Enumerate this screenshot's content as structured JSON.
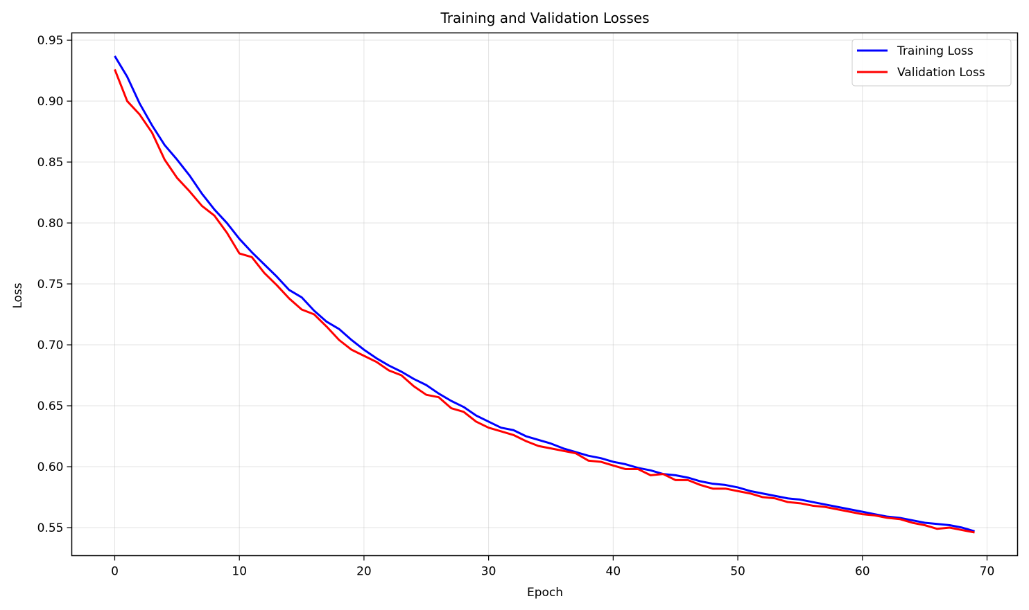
{
  "chart_data": {
    "type": "line",
    "title": "Training and Validation Losses",
    "xlabel": "Epoch",
    "ylabel": "Loss",
    "xlim": [
      -3.45,
      72.45
    ],
    "ylim": [
      0.527,
      0.956
    ],
    "xticks": [
      0,
      10,
      20,
      30,
      40,
      50,
      60,
      70
    ],
    "xtick_labels": [
      "0",
      "10",
      "20",
      "30",
      "40",
      "50",
      "60",
      "70"
    ],
    "yticks": [
      0.55,
      0.6,
      0.65,
      0.7,
      0.75,
      0.8,
      0.85,
      0.9,
      0.95
    ],
    "ytick_labels": [
      "0.55",
      "0.60",
      "0.65",
      "0.70",
      "0.75",
      "0.80",
      "0.85",
      "0.90",
      "0.95"
    ],
    "grid": true,
    "legend_position": "top-right",
    "x": [
      0,
      1,
      2,
      3,
      4,
      5,
      6,
      7,
      8,
      9,
      10,
      11,
      12,
      13,
      14,
      15,
      16,
      17,
      18,
      19,
      20,
      21,
      22,
      23,
      24,
      25,
      26,
      27,
      28,
      29,
      30,
      31,
      32,
      33,
      34,
      35,
      36,
      37,
      38,
      39,
      40,
      41,
      42,
      43,
      44,
      45,
      46,
      47,
      48,
      49,
      50,
      51,
      52,
      53,
      54,
      55,
      56,
      57,
      58,
      59,
      60,
      61,
      62,
      63,
      64,
      65,
      66,
      67,
      68,
      69
    ],
    "series": [
      {
        "name": "Training Loss",
        "color": "#0000ff",
        "values": [
          0.937,
          0.92,
          0.898,
          0.88,
          0.864,
          0.852,
          0.839,
          0.824,
          0.811,
          0.8,
          0.787,
          0.776,
          0.766,
          0.756,
          0.745,
          0.739,
          0.728,
          0.719,
          0.713,
          0.704,
          0.696,
          0.689,
          0.683,
          0.678,
          0.672,
          0.667,
          0.66,
          0.654,
          0.649,
          0.642,
          0.637,
          0.632,
          0.63,
          0.625,
          0.622,
          0.619,
          0.615,
          0.612,
          0.609,
          0.607,
          0.604,
          0.602,
          0.599,
          0.597,
          0.594,
          0.593,
          0.591,
          0.588,
          0.586,
          0.585,
          0.583,
          0.58,
          0.578,
          0.576,
          0.574,
          0.573,
          0.571,
          0.569,
          0.567,
          0.565,
          0.563,
          0.561,
          0.559,
          0.558,
          0.556,
          0.554,
          0.553,
          0.552,
          0.55,
          0.547
        ]
      },
      {
        "name": "Validation Loss",
        "color": "#ff0000",
        "values": [
          0.926,
          0.9,
          0.889,
          0.874,
          0.852,
          0.837,
          0.826,
          0.814,
          0.806,
          0.792,
          0.775,
          0.772,
          0.759,
          0.749,
          0.738,
          0.729,
          0.725,
          0.715,
          0.704,
          0.696,
          0.691,
          0.686,
          0.679,
          0.675,
          0.666,
          0.659,
          0.657,
          0.648,
          0.645,
          0.637,
          0.632,
          0.629,
          0.626,
          0.621,
          0.617,
          0.615,
          0.613,
          0.611,
          0.605,
          0.604,
          0.601,
          0.598,
          0.598,
          0.593,
          0.594,
          0.589,
          0.589,
          0.585,
          0.582,
          0.582,
          0.58,
          0.578,
          0.575,
          0.574,
          0.571,
          0.57,
          0.568,
          0.567,
          0.565,
          0.563,
          0.561,
          0.56,
          0.558,
          0.557,
          0.554,
          0.552,
          0.549,
          0.55,
          0.548,
          0.546
        ]
      }
    ]
  }
}
